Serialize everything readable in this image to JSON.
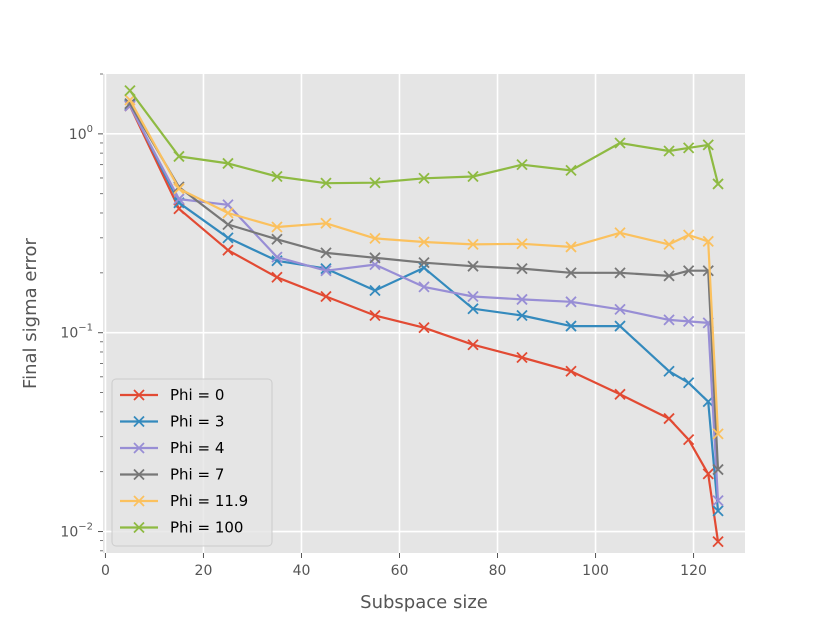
{
  "chart_data": {
    "type": "line",
    "title": "",
    "xlabel": "Subspace size",
    "ylabel": "Final sigma error",
    "xlim": [
      -0.5,
      130.5
    ],
    "ylim": [
      0.0078,
      2.0
    ],
    "yscale": "log",
    "grid": true,
    "legend_position": "lower-left",
    "x_ticks": [
      0,
      20,
      40,
      60,
      80,
      100,
      120
    ],
    "x_tick_labels": [
      "0",
      "20",
      "40",
      "60",
      "80",
      "100",
      "120"
    ],
    "y_ticks": [
      0.01,
      0.1,
      1
    ],
    "y_tick_base": "10",
    "y_tick_exponents": [
      "−2",
      "−1",
      "0"
    ],
    "series": [
      {
        "name": "Phi = 0",
        "color": "#E24A33",
        "x": [
          5,
          15,
          25,
          35,
          45,
          55,
          65,
          75,
          85,
          95,
          105,
          115,
          119,
          123,
          125
        ],
        "y": [
          1.38,
          0.42,
          0.26,
          0.19,
          0.152,
          0.122,
          0.106,
          0.087,
          0.075,
          0.064,
          0.049,
          0.037,
          0.029,
          0.0195,
          0.0089
        ]
      },
      {
        "name": "Phi = 3",
        "color": "#348ABD",
        "x": [
          5,
          15,
          25,
          35,
          45,
          55,
          65,
          75,
          85,
          95,
          105,
          115,
          119,
          123,
          125
        ],
        "y": [
          1.4,
          0.45,
          0.3,
          0.23,
          0.21,
          0.163,
          0.212,
          0.132,
          0.122,
          0.108,
          0.108,
          0.064,
          0.056,
          0.045,
          0.0127
        ]
      },
      {
        "name": "Phi = 4",
        "color": "#988ED5",
        "x": [
          5,
          15,
          25,
          35,
          45,
          55,
          65,
          75,
          85,
          95,
          105,
          115,
          119,
          123,
          125
        ],
        "y": [
          1.38,
          0.47,
          0.44,
          0.24,
          0.205,
          0.22,
          0.17,
          0.152,
          0.147,
          0.143,
          0.131,
          0.116,
          0.114,
          0.112,
          0.0143
        ]
      },
      {
        "name": "Phi = 7",
        "color": "#777777",
        "x": [
          5,
          15,
          25,
          35,
          45,
          55,
          65,
          75,
          85,
          95,
          105,
          115,
          119,
          123,
          125
        ],
        "y": [
          1.42,
          0.54,
          0.35,
          0.295,
          0.252,
          0.238,
          0.225,
          0.216,
          0.21,
          0.2,
          0.2,
          0.193,
          0.205,
          0.205,
          0.0205
        ]
      },
      {
        "name": "Phi = 11.9",
        "color": "#FBC15E",
        "x": [
          5,
          15,
          25,
          35,
          45,
          55,
          65,
          75,
          85,
          95,
          105,
          115,
          119,
          123,
          125
        ],
        "y": [
          1.48,
          0.53,
          0.4,
          0.34,
          0.355,
          0.298,
          0.286,
          0.278,
          0.28,
          0.27,
          0.318,
          0.278,
          0.31,
          0.288,
          0.031
        ]
      },
      {
        "name": "Phi = 100",
        "color": "#8EBA42",
        "x": [
          5,
          15,
          25,
          35,
          45,
          55,
          65,
          75,
          85,
          95,
          105,
          115,
          119,
          123,
          125
        ],
        "y": [
          1.65,
          0.77,
          0.71,
          0.61,
          0.565,
          0.568,
          0.598,
          0.61,
          0.7,
          0.655,
          0.9,
          0.82,
          0.85,
          0.88,
          0.56
        ]
      }
    ]
  }
}
